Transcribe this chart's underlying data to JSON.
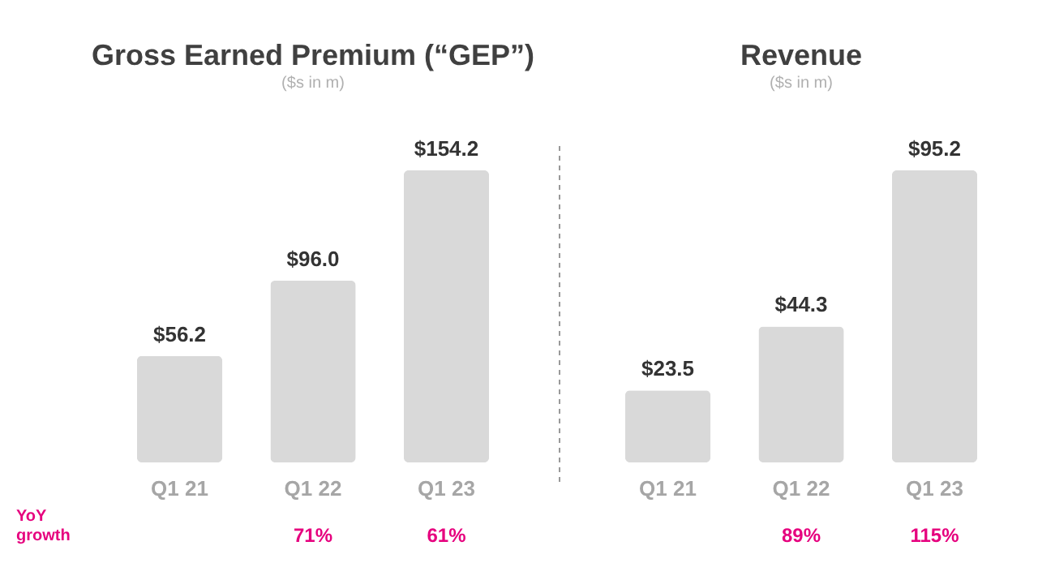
{
  "chart_data": [
    {
      "type": "bar",
      "title": "Gross Earned Premium (“GEP”)",
      "subtitle": "($s in m)",
      "categories": [
        "Q1 21",
        "Q1 22",
        "Q1 23"
      ],
      "values": [
        56.2,
        96.0,
        154.2
      ],
      "value_labels": [
        "$56.2",
        "$96.0",
        "$154.2"
      ],
      "color": "#d9d9d9",
      "annotations": [
        "YoY growth",
        "71%",
        "61%"
      ]
    },
    {
      "type": "bar",
      "title": "Revenue",
      "subtitle": "($s in m)",
      "categories": [
        "Q1 21",
        "Q1 22",
        "Q1 23"
      ],
      "values": [
        23.5,
        44.3,
        95.2
      ],
      "value_labels": [
        "$23.5",
        "$44.3",
        "$95.2"
      ],
      "color": "#d9d9d9",
      "annotations": [
        "89%",
        "115%"
      ]
    }
  ]
}
